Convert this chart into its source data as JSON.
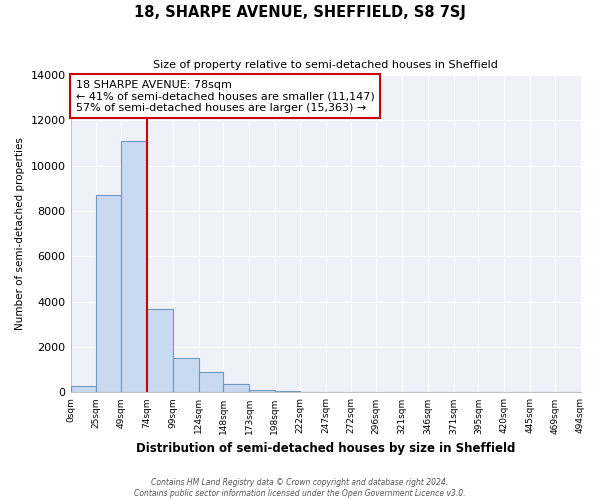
{
  "title": "18, SHARPE AVENUE, SHEFFIELD, S8 7SJ",
  "subtitle": "Size of property relative to semi-detached houses in Sheffield",
  "xlabel": "Distribution of semi-detached houses by size in Sheffield",
  "ylabel": "Number of semi-detached properties",
  "bar_edges": [
    0,
    25,
    49,
    74,
    99,
    124,
    148,
    173,
    198,
    222,
    247,
    272,
    296,
    321,
    346,
    371,
    395,
    420,
    445,
    469,
    494
  ],
  "bar_heights": [
    300,
    8700,
    11100,
    3700,
    1500,
    900,
    350,
    100,
    80,
    0,
    0,
    0,
    0,
    0,
    0,
    0,
    0,
    0,
    0,
    0
  ],
  "bar_color": "#c9d9f0",
  "bar_edgecolor": "#7099c0",
  "property_line_x": 74,
  "property_line_color": "#cc0000",
  "annotation_box_edgecolor": "#cc0000",
  "annotation_title": "18 SHARPE AVENUE: 78sqm",
  "annotation_line1": "← 41% of semi-detached houses are smaller (11,147)",
  "annotation_line2": "57% of semi-detached houses are larger (15,363) →",
  "tick_labels": [
    "0sqm",
    "25sqm",
    "49sqm",
    "74sqm",
    "99sqm",
    "124sqm",
    "148sqm",
    "173sqm",
    "198sqm",
    "222sqm",
    "247sqm",
    "272sqm",
    "296sqm",
    "321sqm",
    "346sqm",
    "371sqm",
    "395sqm",
    "420sqm",
    "445sqm",
    "469sqm",
    "494sqm"
  ],
  "ylim": [
    0,
    14000
  ],
  "yticks": [
    0,
    2000,
    4000,
    6000,
    8000,
    10000,
    12000,
    14000
  ],
  "footnote1": "Contains HM Land Registry data © Crown copyright and database right 2024.",
  "footnote2": "Contains public sector information licensed under the Open Government Licence v3.0."
}
